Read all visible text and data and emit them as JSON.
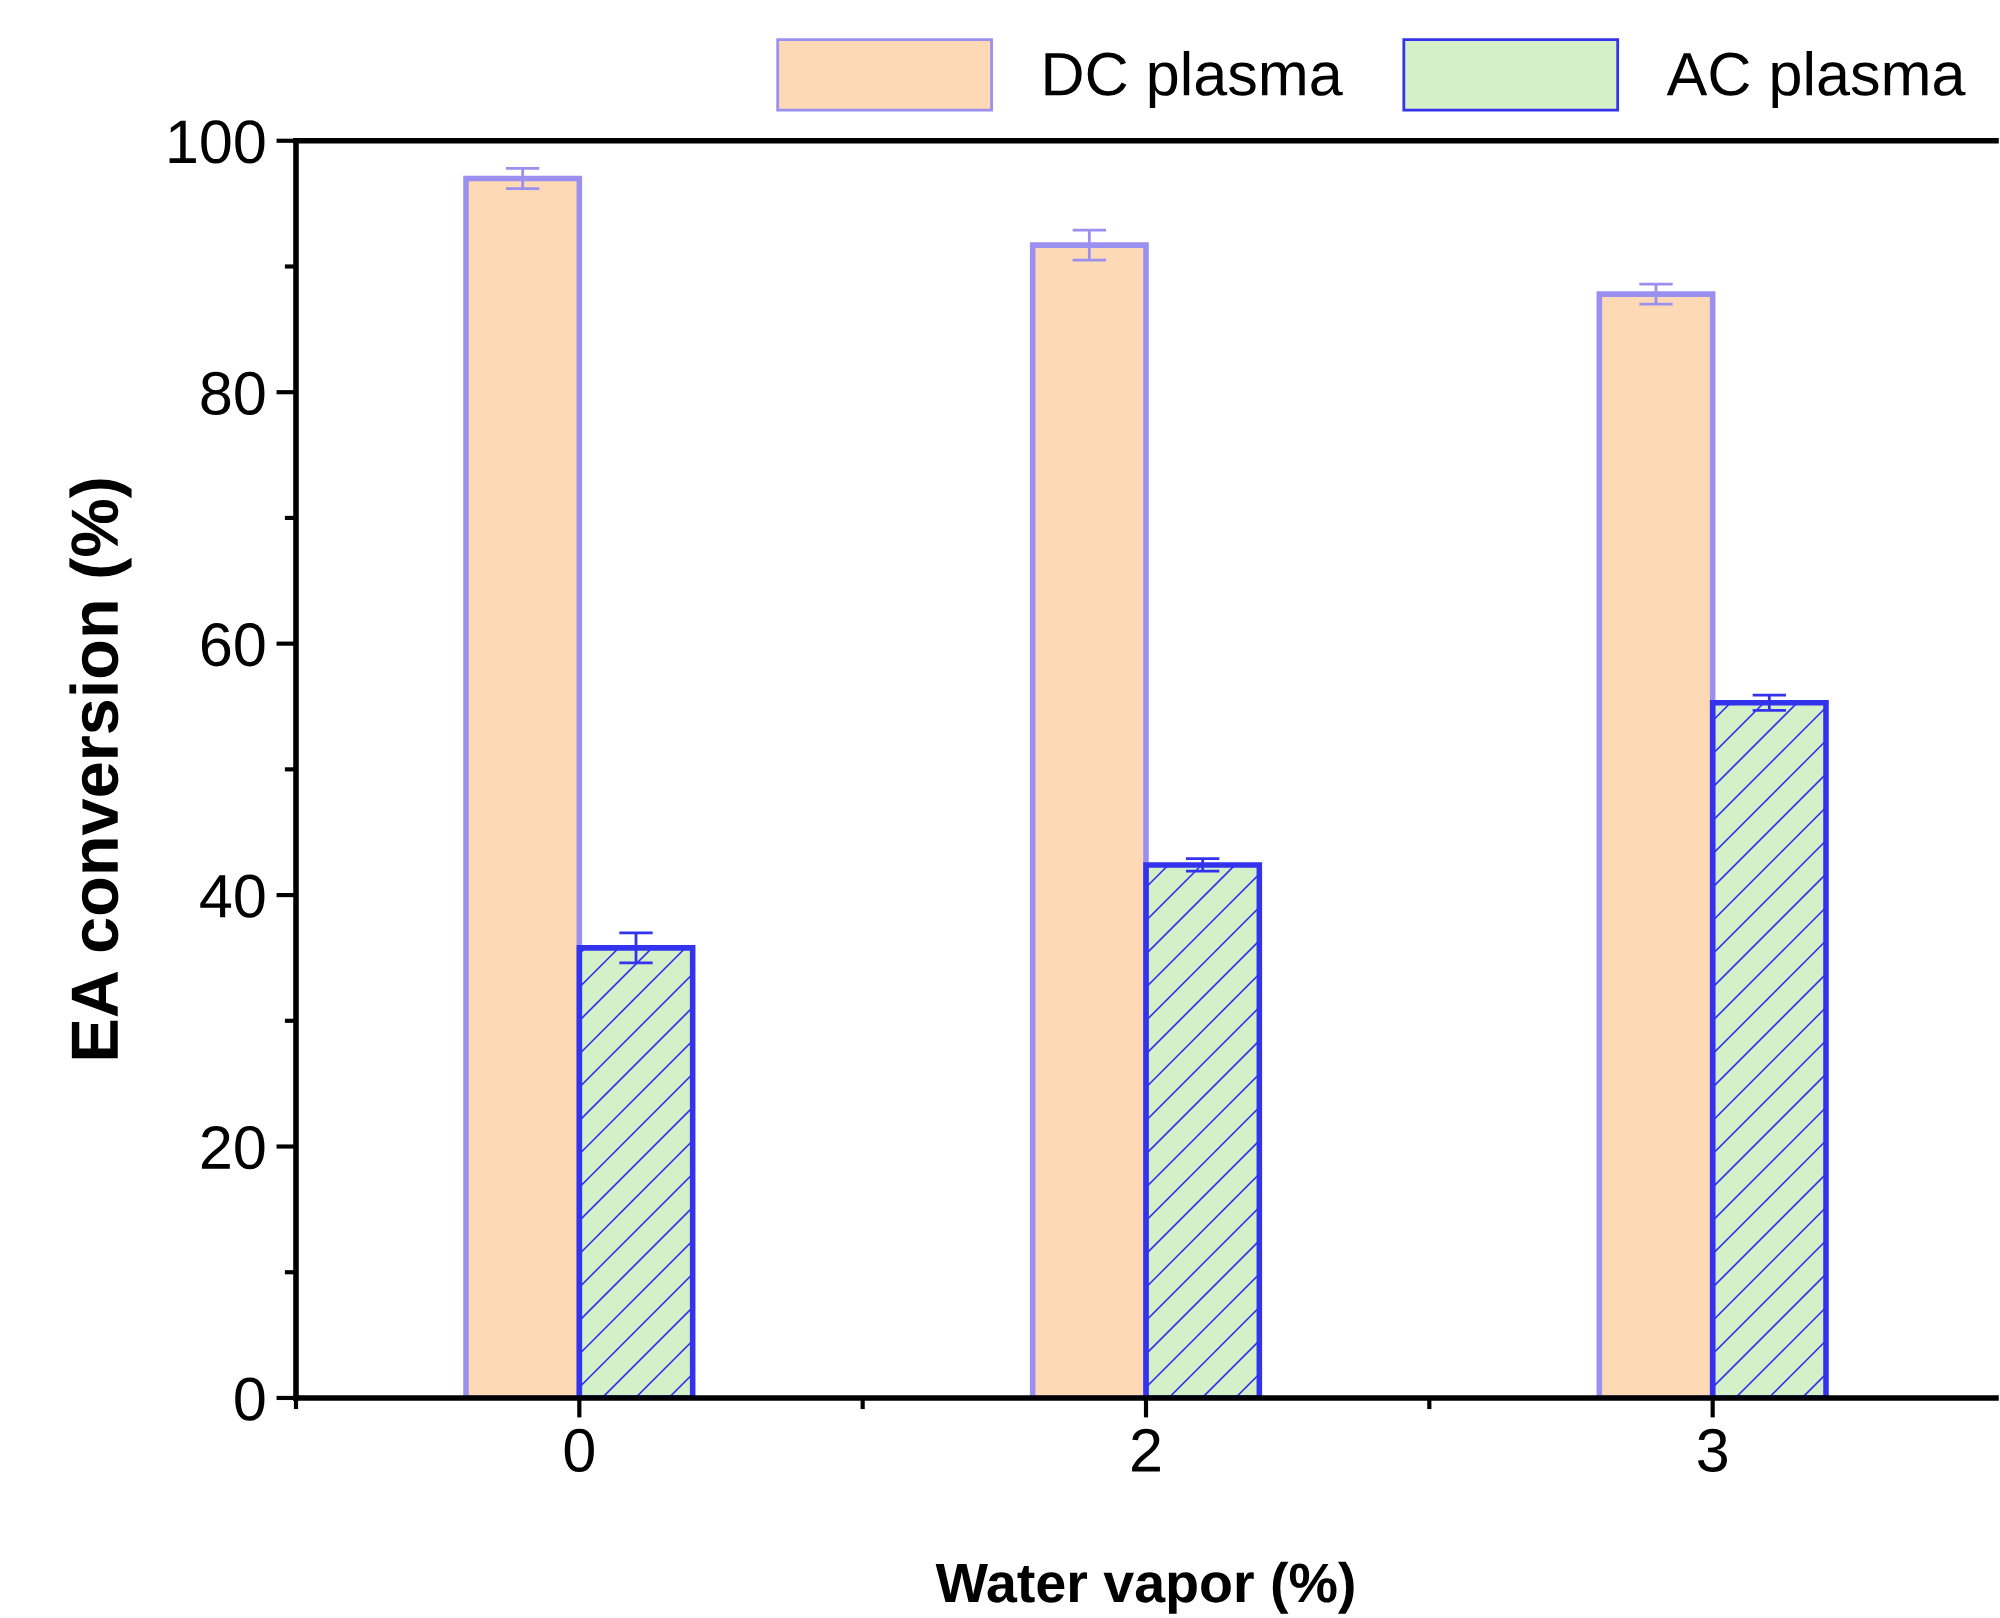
{
  "chart_data": {
    "type": "bar",
    "xlabel": "Water vapor (%)",
    "ylabel": "EA conversion (%)",
    "categories": [
      "0",
      "2",
      "3"
    ],
    "series": [
      {
        "name": "DC plasma",
        "color": "#fdd9b5",
        "values": [
          97.0,
          91.7,
          87.8
        ],
        "errors": [
          0.8,
          1.2,
          0.8
        ]
      },
      {
        "name": "AC plasma",
        "color": "#d3f0c8",
        "values": [
          35.8,
          42.4,
          55.3
        ],
        "errors": [
          1.2,
          0.5,
          0.6
        ]
      }
    ],
    "ylim": [
      0,
      100
    ],
    "yticks": [
      0,
      20,
      40,
      60,
      80,
      100
    ],
    "grid": false,
    "legend": "top"
  }
}
